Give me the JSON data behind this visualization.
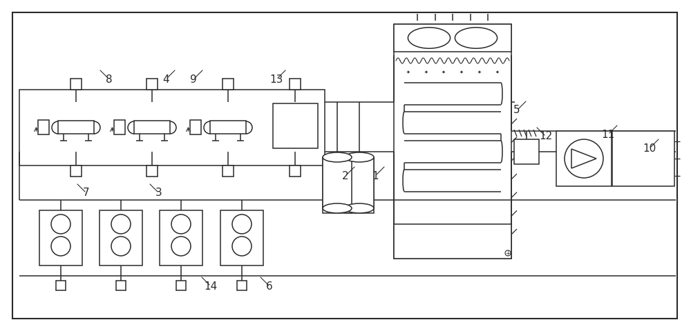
{
  "figsize": [
    10.0,
    4.8
  ],
  "dpi": 100,
  "bg_color": "#ffffff",
  "line_color": "#2a2a2a",
  "lw": 1.1
}
